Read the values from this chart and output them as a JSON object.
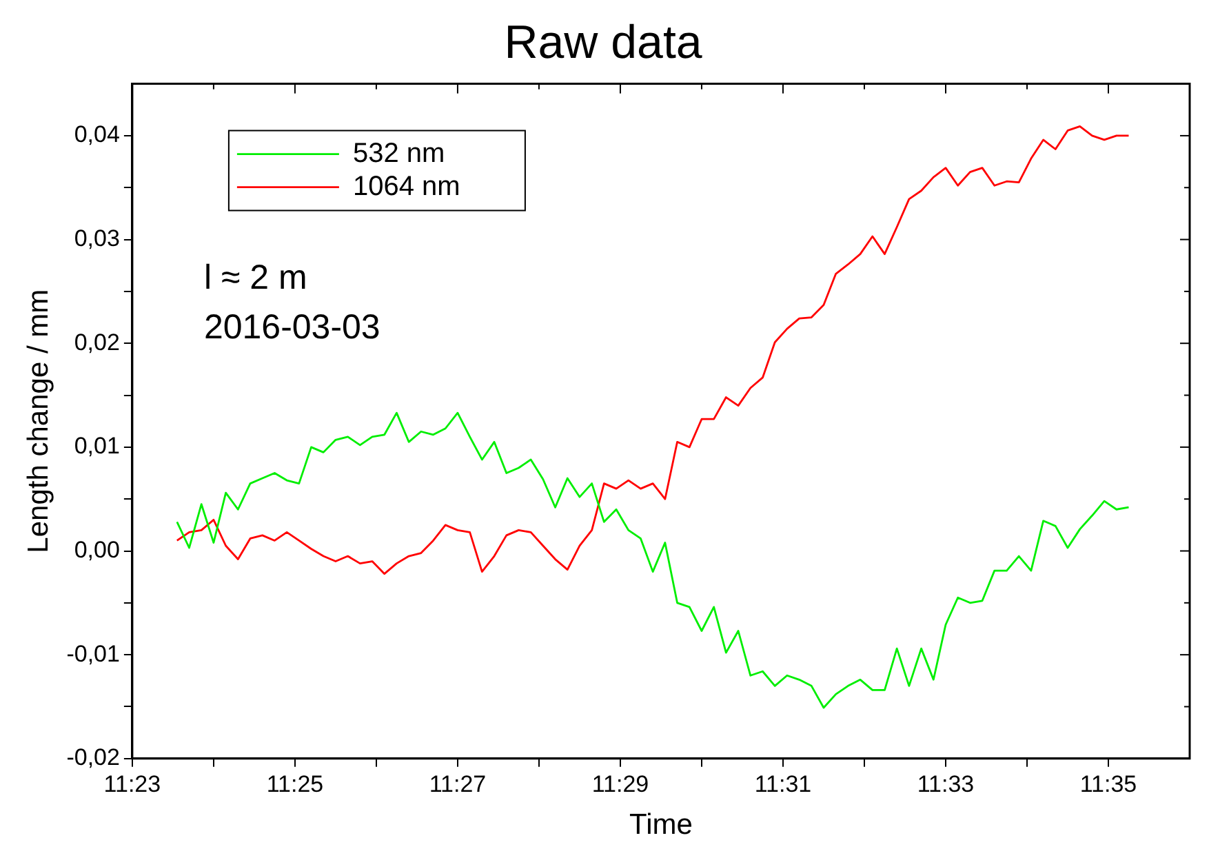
{
  "chart_data": {
    "type": "line",
    "title": "Raw data",
    "xlabel": "Time",
    "ylabel": "Length change / mm",
    "x": [
      11.3925,
      11.395,
      11.3975,
      11.4,
      11.4025,
      11.405,
      11.4075,
      11.41,
      11.4125,
      11.415,
      11.4175,
      11.42,
      11.4225,
      11.425,
      11.4275,
      11.43,
      11.4325,
      11.435,
      11.4375,
      11.44,
      11.4425,
      11.445,
      11.4475,
      11.45,
      11.4525,
      11.455,
      11.4575,
      11.46,
      11.4625,
      11.465,
      11.4675,
      11.47,
      11.4725,
      11.475,
      11.4775,
      11.48,
      11.4825,
      11.485,
      11.4875,
      11.49,
      11.4925,
      11.495,
      11.4975,
      11.5,
      11.5025,
      11.505,
      11.5075,
      11.51,
      11.5125,
      11.515,
      11.5175,
      11.52,
      11.5225,
      11.525,
      11.5275,
      11.53,
      11.5325,
      11.535,
      11.5375,
      11.54,
      11.5425,
      11.545,
      11.5475,
      11.55,
      11.5525,
      11.555,
      11.5575,
      11.56,
      11.5625,
      11.565,
      11.5675,
      11.57,
      11.5725,
      11.575,
      11.5775,
      11.58,
      11.5825,
      11.585,
      11.5875
    ],
    "series": [
      {
        "name": "532 nm",
        "color": "#00ee00",
        "values": [
          0.0028,
          0.0003,
          0.0045,
          0.0008,
          0.0056,
          0.004,
          0.0065,
          0.007,
          0.0075,
          0.0068,
          0.0065,
          0.01,
          0.0095,
          0.0107,
          0.011,
          0.0102,
          0.011,
          0.0112,
          0.0133,
          0.0105,
          0.0115,
          0.0112,
          0.0118,
          0.0133,
          0.011,
          0.0088,
          0.0105,
          0.0075,
          0.008,
          0.0088,
          0.0069,
          0.0042,
          0.007,
          0.0052,
          0.0065,
          0.0028,
          0.004,
          0.002,
          0.0012,
          -0.002,
          0.0008,
          -0.005,
          -0.0054,
          -0.0077,
          -0.0054,
          -0.0098,
          -0.0077,
          -0.012,
          -0.0116,
          -0.013,
          -0.012,
          -0.0124,
          -0.013,
          -0.0151,
          -0.0138,
          -0.013,
          -0.0124,
          -0.0134,
          -0.0134,
          -0.0094,
          -0.013,
          -0.0094,
          -0.0124,
          -0.0071,
          -0.0045,
          -0.005,
          -0.0048,
          -0.0019,
          -0.0019,
          -0.0005,
          -0.0019,
          0.0029,
          0.0024,
          0.0003,
          0.0021,
          0.0034,
          0.0048,
          0.004,
          0.0042
        ]
      },
      {
        "name": "1064 nm",
        "color": "#ff0000",
        "values": [
          0.001,
          0.0018,
          0.002,
          0.003,
          0.0005,
          -0.0008,
          0.0012,
          0.0015,
          0.001,
          0.0018,
          0.001,
          0.0002,
          -0.0005,
          -0.001,
          -0.0005,
          -0.0012,
          -0.001,
          -0.0022,
          -0.0012,
          -0.0005,
          -0.0002,
          0.001,
          0.0025,
          0.002,
          0.0018,
          -0.002,
          -0.0005,
          0.0015,
          0.002,
          0.0018,
          0.0005,
          -0.0008,
          -0.0018,
          0.0005,
          0.002,
          0.0065,
          0.006,
          0.0068,
          0.006,
          0.0065,
          0.005,
          0.0105,
          0.01,
          0.0127,
          0.0127,
          0.0148,
          0.014,
          0.0157,
          0.0167,
          0.0201,
          0.0214,
          0.0224,
          0.0225,
          0.0237,
          0.0267,
          0.0276,
          0.0286,
          0.0303,
          0.0286,
          0.0312,
          0.0339,
          0.0347,
          0.036,
          0.0369,
          0.0352,
          0.0365,
          0.0369,
          0.0352,
          0.0356,
          0.0355,
          0.0378,
          0.0396,
          0.0387,
          0.0405,
          0.0409,
          0.04,
          0.0396,
          0.04,
          0.04
        ]
      }
    ],
    "xlim": [
      11.383333,
      11.6
    ],
    "xticks": [
      {
        "value": 11.383333,
        "label": "11:23"
      },
      {
        "value": 11.4,
        "label": null
      },
      {
        "value": 11.416667,
        "label": "11:25"
      },
      {
        "value": 11.433333,
        "label": null
      },
      {
        "value": 11.45,
        "label": "11:27"
      },
      {
        "value": 11.466667,
        "label": null
      },
      {
        "value": 11.483333,
        "label": "11:29"
      },
      {
        "value": 11.5,
        "label": null
      },
      {
        "value": 11.516667,
        "label": "11:31"
      },
      {
        "value": 11.533333,
        "label": null
      },
      {
        "value": 11.55,
        "label": "11:33"
      },
      {
        "value": 11.566667,
        "label": null
      },
      {
        "value": 11.583333,
        "label": "11:35"
      }
    ],
    "ylim": [
      -0.02,
      0.045
    ],
    "yticks": [
      {
        "value": -0.02,
        "label": "-0,02"
      },
      {
        "value": -0.015,
        "label": null
      },
      {
        "value": -0.01,
        "label": "-0,01"
      },
      {
        "value": -0.005,
        "label": null
      },
      {
        "value": 0,
        "label": "0,00"
      },
      {
        "value": 0.005,
        "label": null
      },
      {
        "value": 0.01,
        "label": "0,01"
      },
      {
        "value": 0.015,
        "label": null
      },
      {
        "value": 0.02,
        "label": "0,02"
      },
      {
        "value": 0.025,
        "label": null
      },
      {
        "value": 0.03,
        "label": "0,03"
      },
      {
        "value": 0.035,
        "label": null
      },
      {
        "value": 0.04,
        "label": "0,04"
      }
    ],
    "annotations": [
      "l ≈ 2 m",
      "2016-03-03"
    ],
    "legend": "top left",
    "grid": false,
    "marker": "none",
    "line_style": "solid"
  }
}
